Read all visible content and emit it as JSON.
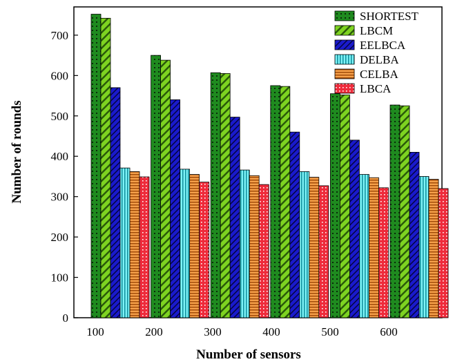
{
  "chart_data": {
    "type": "bar",
    "categories": [
      "100",
      "200",
      "300",
      "400",
      "500",
      "600"
    ],
    "xlabel": "Number of sensors",
    "ylabel": "Number of rounds",
    "ylim": [
      0,
      770
    ],
    "yticks": [
      0,
      100,
      200,
      300,
      400,
      500,
      600,
      700
    ],
    "legend_position": "top-right",
    "grid": false,
    "series": [
      {
        "name": "SHORTEST",
        "color": "#1f8a1f",
        "pattern": "dots",
        "values": [
          752,
          650,
          607,
          575,
          555,
          527
        ]
      },
      {
        "name": "LBCM",
        "color": "#7ed321",
        "pattern": "diagonal",
        "values": [
          742,
          638,
          605,
          573,
          552,
          525
        ]
      },
      {
        "name": "EELBCA",
        "color": "#1a1acc",
        "pattern": "diagonal-thin",
        "values": [
          570,
          540,
          497,
          460,
          440,
          410
        ]
      },
      {
        "name": "DELBA",
        "color": "#33e6ee",
        "pattern": "vertical",
        "values": [
          371,
          368,
          366,
          362,
          355,
          350
        ]
      },
      {
        "name": "CELBA",
        "color": "#f08a2a",
        "pattern": "horizontal",
        "values": [
          362,
          355,
          352,
          348,
          347,
          343
        ]
      },
      {
        "name": "LBCA",
        "color": "#ee2b3b",
        "pattern": "dots",
        "values": [
          349,
          336,
          330,
          327,
          322,
          320
        ]
      }
    ]
  }
}
